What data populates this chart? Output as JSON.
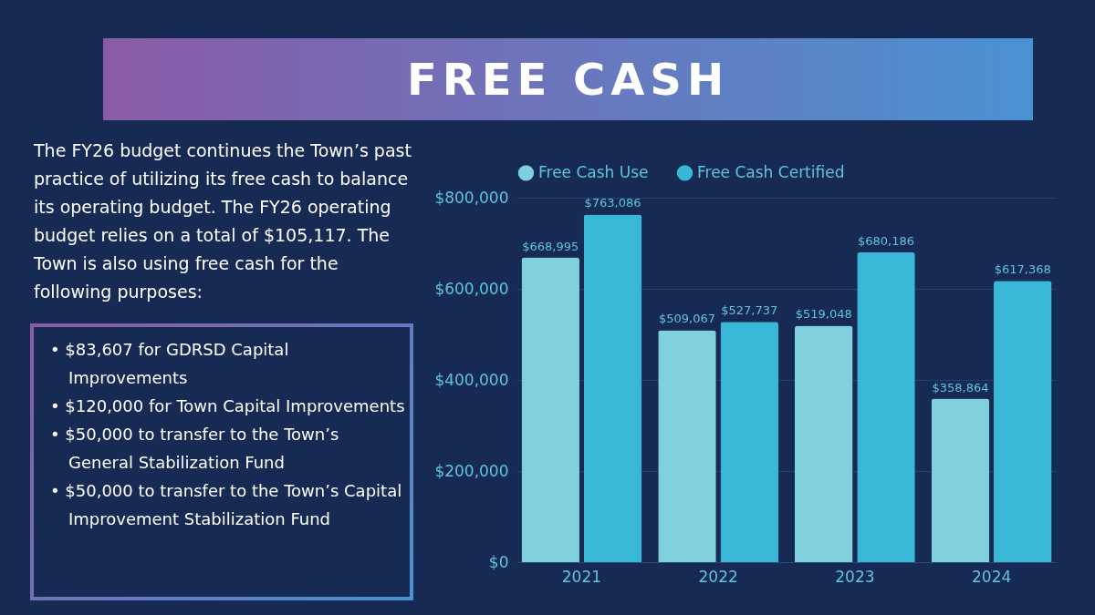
{
  "chart_data": {
    "type": "bar",
    "title": "FREE CASH",
    "annotations": [
      "The FY26 budget continues the Town’s past practice of utilizing its free cash to balance its operating budget. The FY26 operating budget relies on a total of $105,117. The Town is also using free cash for the following purposes:",
      "• $83,607 for GDRSD Capital Improvements",
      "• $120,000 for Town Capital Improvements",
      "• $50,000 to transfer to the Town’s General Stabilization Fund",
      "• $50,000 to transfer to the Town’s Capital Improvement Stabilization Fund"
    ],
    "categories": [
      "2021",
      "2022",
      "2023",
      "2024"
    ],
    "series": [
      {
        "name": "Free Cash Use",
        "color": "#7fd0dc",
        "values": [
          668995,
          509067,
          519048,
          358864
        ],
        "value_labels": [
          "$668,995",
          "$509,067",
          "$519,048",
          "$358,864"
        ]
      },
      {
        "name": "Free Cash Certified",
        "color": "#38b8d6",
        "values": [
          763086,
          527737,
          680186,
          617368
        ],
        "value_labels": [
          "$763,086",
          "$527,737",
          "$680,186",
          "$617,368"
        ]
      }
    ],
    "ylim": [
      0,
      800000
    ],
    "yticks": [
      {
        "value": 0,
        "label": "$0"
      },
      {
        "value": 200000,
        "label": "$200,000"
      },
      {
        "value": 400000,
        "label": "$400,000"
      },
      {
        "value": 600000,
        "label": "$600,000"
      },
      {
        "value": 800000,
        "label": "$800,000"
      }
    ],
    "grid": "y",
    "legend": "top"
  }
}
